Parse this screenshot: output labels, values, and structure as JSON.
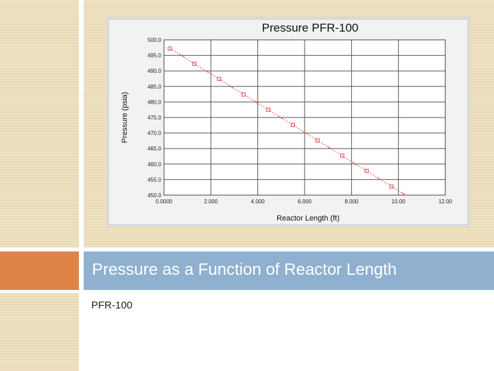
{
  "slide": {
    "title": "Pressure as a Function of Reactor Length",
    "subtitle": "PFR-100"
  },
  "colors": {
    "title_bar": "#8fb0cf",
    "accent_block": "#de8449",
    "series": "#e05050"
  },
  "chart_data": {
    "type": "line",
    "title": "Pressure PFR-100",
    "xlabel": "Reactor Length (ft)",
    "ylabel": "Pressure (psia)",
    "xlim": [
      0,
      12
    ],
    "ylim": [
      450,
      500
    ],
    "xticks": [
      "0.0000",
      "2.000",
      "4.000",
      "6.000",
      "8.000",
      "10.00",
      "12.00"
    ],
    "yticks": [
      "500.0",
      "495.0",
      "490.0",
      "485.0",
      "480.0",
      "475.0",
      "470.0",
      "465.0",
      "460.0",
      "455.0",
      "450.0"
    ],
    "grid": true,
    "series": [
      {
        "x": [
          0.25,
          0.78,
          1.3,
          1.83,
          2.35,
          2.87,
          3.4,
          3.92,
          4.45,
          4.97,
          5.5,
          6.02,
          6.55,
          7.07,
          7.6,
          8.12,
          8.65,
          9.17,
          9.7,
          10.22
        ],
        "y": [
          497.2,
          494.8,
          492.3,
          489.8,
          487.4,
          484.9,
          482.4,
          480.0,
          477.5,
          475.0,
          472.6,
          470.1,
          467.6,
          465.2,
          462.7,
          460.2,
          457.8,
          455.3,
          452.8,
          450.4
        ]
      }
    ]
  }
}
